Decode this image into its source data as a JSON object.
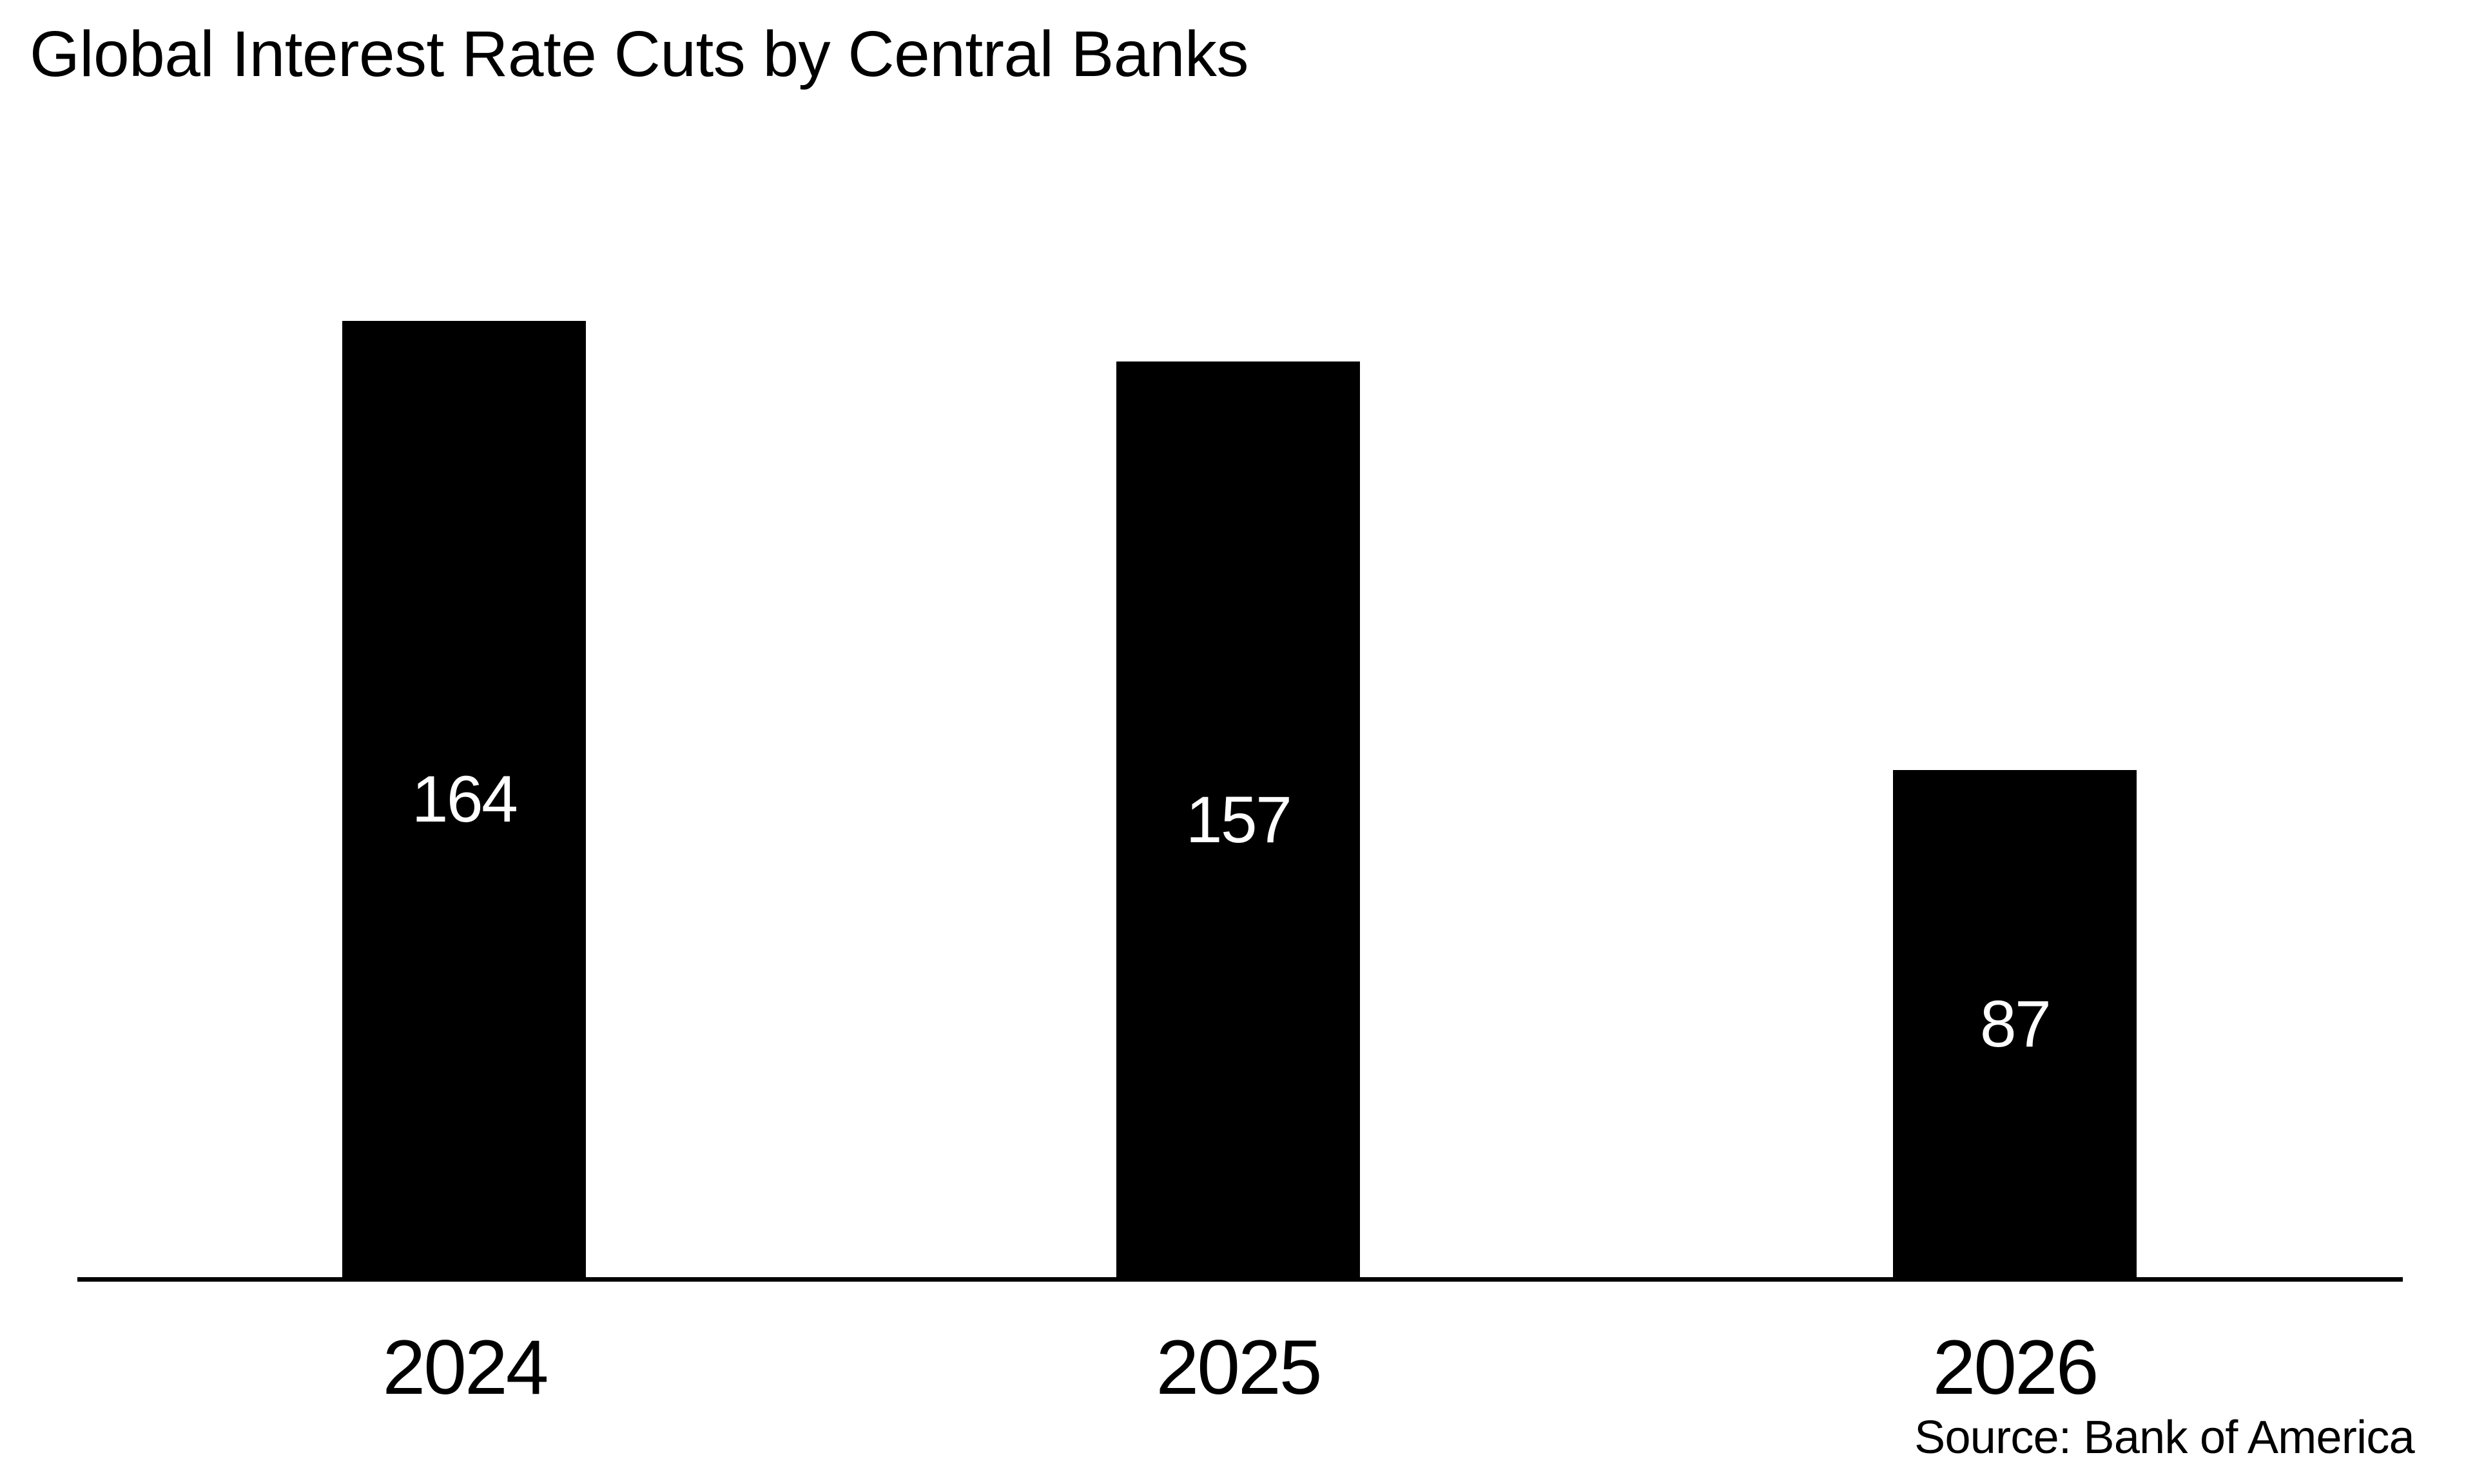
{
  "chart_data": {
    "type": "bar",
    "title": "Global Interest Rate Cuts by Central Banks",
    "categories": [
      "2024",
      "2025",
      "2026"
    ],
    "values": [
      164,
      157,
      87
    ],
    "value_labels": [
      "164",
      "157",
      "87"
    ],
    "source": "Source: Bank of America",
    "xlabel": "",
    "ylabel": "",
    "ylim": [
      0,
      164
    ],
    "grid": false,
    "legend": "none",
    "y_axis_shown": false,
    "value_label_position": "inside-center",
    "colors": {
      "background": "#ffffff",
      "bar": "#000000",
      "value_label": "#ffffff",
      "text": "#000000",
      "axis": "#000000"
    }
  }
}
